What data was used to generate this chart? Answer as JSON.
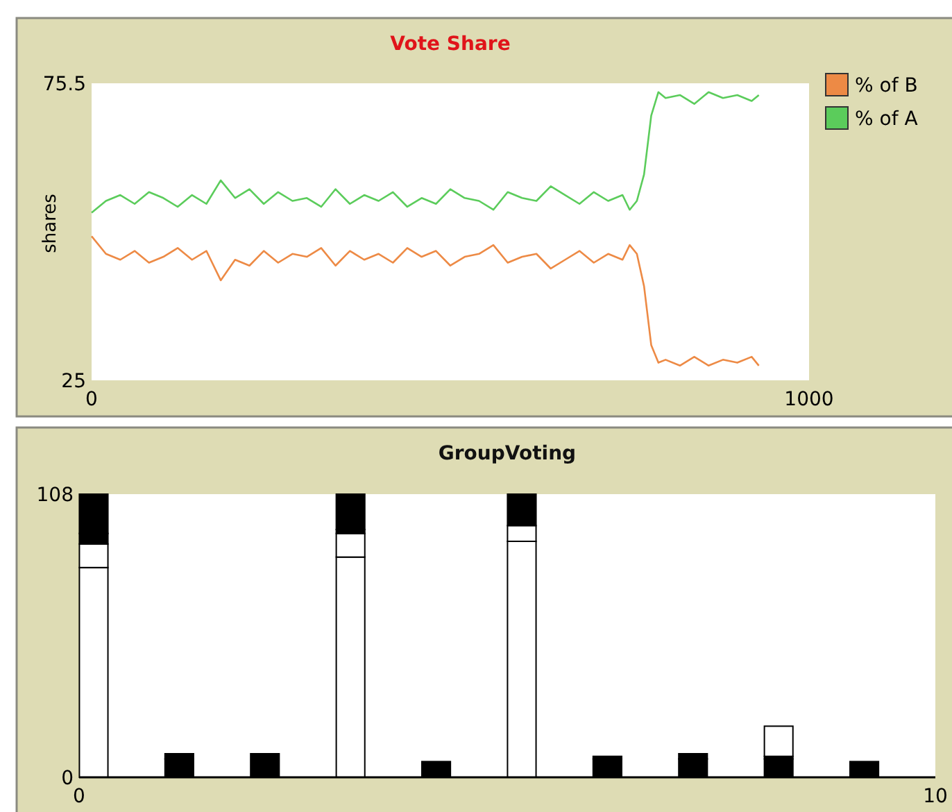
{
  "chart_data": [
    {
      "type": "line",
      "title": "Vote Share",
      "ylabel": "shares",
      "xlim": [
        0,
        1000
      ],
      "xticks": [
        0,
        1000
      ],
      "ylim": [
        25,
        75.5
      ],
      "yticks": [
        25,
        75.5
      ],
      "legend": "right",
      "grid": false,
      "x": [
        0,
        20,
        40,
        60,
        80,
        100,
        120,
        140,
        160,
        180,
        200,
        220,
        240,
        260,
        280,
        300,
        320,
        340,
        360,
        380,
        400,
        420,
        440,
        460,
        480,
        500,
        520,
        540,
        560,
        580,
        600,
        620,
        640,
        660,
        680,
        700,
        720,
        740,
        750,
        760,
        770,
        780,
        790,
        800,
        820,
        840,
        860,
        880,
        900,
        920,
        930
      ],
      "series": [
        {
          "name": "% of B",
          "color": "#ed8a45",
          "values": [
            49.5,
            46.5,
            45.5,
            47,
            45,
            46,
            47.5,
            45.5,
            47,
            42,
            45.5,
            44.5,
            47,
            45,
            46.5,
            46,
            47.5,
            44.5,
            47,
            45.5,
            46.5,
            45,
            47.5,
            46,
            47,
            44.5,
            46,
            46.5,
            48,
            45,
            46,
            46.5,
            44,
            45.5,
            47,
            45,
            46.5,
            45.5,
            48,
            46.5,
            41,
            31,
            28,
            28.5,
            27.5,
            29,
            27.5,
            28.5,
            28,
            29,
            27.5
          ]
        },
        {
          "name": "% of A",
          "color": "#5bcc5b",
          "values": [
            53.5,
            55.5,
            56.5,
            55,
            57,
            56,
            54.5,
            56.5,
            55,
            59,
            56,
            57.5,
            55,
            57,
            55.5,
            56,
            54.5,
            57.5,
            55,
            56.5,
            55.5,
            57,
            54.5,
            56,
            55,
            57.5,
            56,
            55.5,
            54,
            57,
            56,
            55.5,
            58,
            56.5,
            55,
            57,
            55.5,
            56.5,
            54,
            55.5,
            60,
            70,
            74,
            73,
            73.5,
            72,
            74,
            73,
            73.5,
            72.5,
            73.5
          ]
        }
      ]
    },
    {
      "type": "bar",
      "title": "GroupVoting",
      "stacked": true,
      "xlim": [
        0,
        10
      ],
      "xticks": [
        0,
        10
      ],
      "ylim": [
        0,
        108
      ],
      "yticks": [
        0,
        108
      ],
      "legend": false,
      "grid": false,
      "x": [
        0.17,
        1.17,
        2.17,
        3.17,
        4.17,
        5.17,
        6.17,
        7.17,
        8.17,
        9.17
      ],
      "series": [
        {
          "color": "#ffffff",
          "values": [
            80,
            0,
            0,
            84,
            0,
            90,
            0,
            0,
            0,
            0
          ]
        },
        {
          "color": "#ffffff",
          "values": [
            9,
            0,
            0,
            9,
            0,
            6,
            0,
            0,
            0,
            0
          ]
        },
        {
          "color": "#000000",
          "values": [
            4,
            7,
            9,
            1.5,
            6,
            12,
            7,
            7,
            7,
            6
          ]
        },
        {
          "color": "#000000",
          "values": [
            15,
            2,
            0,
            13.5,
            0,
            0,
            1,
            2,
            1,
            0
          ]
        },
        {
          "color": "#ffffff",
          "values": [
            0,
            0,
            0,
            0,
            0,
            0,
            0,
            0,
            11.5,
            0
          ]
        }
      ]
    }
  ]
}
